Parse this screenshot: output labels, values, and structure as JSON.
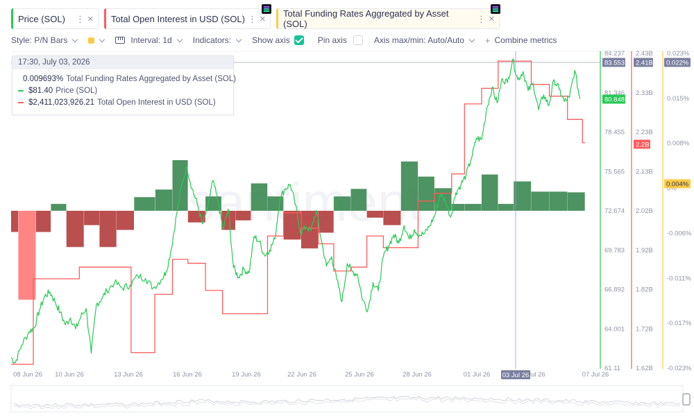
{
  "tabs": [
    {
      "label": "Price (SOL)",
      "color": "#26c953"
    },
    {
      "label": "Total Open Interest in USD (SOL)",
      "color": "#ff5b5b"
    },
    {
      "label": "Total Funding Rates Aggregated by Asset (SOL)",
      "color": "#ffcb47"
    }
  ],
  "toolbar": {
    "style_label": "Style: P/N Bars",
    "interval_label": "Interval: 1d",
    "indicators_label": "Indicators:",
    "show_axis_label": "Show axis",
    "show_axis_checked": true,
    "pin_axis_label": "Pin axis",
    "pin_axis_checked": false,
    "axis_minmax_label": "Axis max/min: Auto/Auto",
    "combine_label": "Combine metrics"
  },
  "tooltip": {
    "header": "17:30, July 03, 2026",
    "rows": [
      {
        "value": "0.009693%",
        "name": "Total Funding Rates Aggregated by Asset (SOL)",
        "color": "#ffcb47"
      },
      {
        "value": "$81.40",
        "name": "Price (SOL)",
        "color": "#26c953"
      },
      {
        "value": "$2,411,023,926.21",
        "name": "Total Open Interest in USD (SOL)",
        "color": "#ff5b5b"
      }
    ]
  },
  "watermark": "santiment",
  "chart_data": {
    "type": "line",
    "x_tick_labels": [
      "08 Jun 26",
      "10 Jun 26",
      "13 Jun 26",
      "16 Jun 26",
      "19 Jun 26",
      "22 Jun 26",
      "25 Jun 26",
      "28 Jun 26",
      "01 Jul 26",
      "03 Jul 26",
      "Jul 26",
      "07 Jul 26"
    ],
    "crosshair_label": "03 Jul 26",
    "axes": {
      "price": {
        "ticks": [
          "84.237",
          "81.346",
          "78.455",
          "75.565",
          "72.674",
          "69.783",
          "66.892",
          "64.001",
          "61.11"
        ],
        "range": [
          61.11,
          84.237
        ],
        "color": "#26c953"
      },
      "open_interest": {
        "ticks": [
          "2.43B",
          "2.33B",
          "2.23B",
          "2.13B",
          "2.02B",
          "1.92B",
          "1.82B",
          "1.72B",
          "1.62B"
        ],
        "range": [
          1.62,
          2.43
        ],
        "unit": "B",
        "color": "#ff5b5b"
      },
      "funding_rate": {
        "ticks": [
          "0.023%",
          "0.015%",
          "0.008%",
          "0%",
          "-0.006%",
          "-0.011%",
          "-0.017%",
          "-0.023%"
        ],
        "range": [
          -0.023,
          0.023
        ],
        "unit": "%",
        "color": "#ffcb47"
      }
    },
    "badges": {
      "price_hover": "83.553",
      "price_last": "80.848",
      "oi_hover": "2.41B",
      "oi_last": "2.2B",
      "fr_hover": "0.022%",
      "fr_last": "0.004%"
    },
    "series": [
      {
        "name": "Total Funding Rates Aggregated by Asset (SOL)",
        "style": "P/N Bars",
        "positive_color": "#3f8a55",
        "negative_color": "#b3403f",
        "bars": [
          [
            0,
            1.4,
            -0.0031
          ],
          [
            1.4,
            4.8,
            -0.013
          ],
          [
            4.8,
            7.7,
            -0.0031
          ],
          [
            7.7,
            10.7,
            0.001
          ],
          [
            10.7,
            14.1,
            -0.0053
          ],
          [
            14.1,
            17.1,
            -0.0021
          ],
          [
            17.1,
            20.4,
            -0.0053
          ],
          [
            20.4,
            23.8,
            -0.0028
          ],
          [
            23.8,
            27.9,
            0.002
          ],
          [
            27.9,
            31.2,
            0.0031
          ],
          [
            31.2,
            34.2,
            0.0074
          ],
          [
            34.2,
            37.6,
            -0.0017
          ],
          [
            37.6,
            40.7,
            0.0021
          ],
          [
            40.7,
            43.4,
            -0.0028
          ],
          [
            43.4,
            46.4,
            -0.0014
          ],
          [
            46.4,
            49.6,
            0.004
          ],
          [
            49.6,
            52.7,
            0.0021
          ],
          [
            52.7,
            56.1,
            -0.0042
          ],
          [
            56.1,
            59.4,
            -0.0055
          ],
          [
            59.4,
            62.4,
            -0.0032
          ],
          [
            62.4,
            65.7,
            0.0021
          ],
          [
            65.7,
            68.8,
            0.0032
          ],
          [
            68.8,
            72.0,
            -0.001
          ],
          [
            72.0,
            75.4,
            -0.0021
          ],
          [
            75.4,
            78.7,
            0.0072
          ],
          [
            78.7,
            81.9,
            0.005
          ],
          [
            81.9,
            85.2,
            0.0033
          ],
          [
            85.2,
            87.7,
            0.001
          ],
          [
            87.7,
            91.0,
            0.001
          ],
          [
            91.0,
            94.2,
            0.0053
          ],
          [
            94.2,
            97.2,
            0.001
          ],
          [
            97.2,
            100.6,
            0.0043
          ],
          [
            100.6,
            104.1,
            0.0028
          ],
          [
            104.1,
            107.6,
            0.0028
          ],
          [
            107.6,
            111.0,
            0.0027
          ]
        ],
        "x_domain_days": [
          0,
          111
        ]
      },
      {
        "name": "Price (SOL)",
        "color": "#26c953",
        "x_domain_days": [
          0,
          111
        ],
        "points": [
          [
            0,
            61.9
          ],
          [
            0.8,
            61.5
          ],
          [
            2,
            62.8
          ],
          [
            3.5,
            63.8
          ],
          [
            4.5,
            64.1
          ],
          [
            5.5,
            65.4
          ],
          [
            6.5,
            66.4
          ],
          [
            7.5,
            66.7
          ],
          [
            8.5,
            66.0
          ],
          [
            9.5,
            65.2
          ],
          [
            10.5,
            64.3
          ],
          [
            11.5,
            64.8
          ],
          [
            12.5,
            64.0
          ],
          [
            13.5,
            64.9
          ],
          [
            14.5,
            65.5
          ],
          [
            15.5,
            62.2
          ],
          [
            16.5,
            65.8
          ],
          [
            17.5,
            66.2
          ],
          [
            18.5,
            66.8
          ],
          [
            20,
            67.4
          ],
          [
            21.5,
            67.0
          ],
          [
            23,
            67.2
          ],
          [
            24.5,
            67.9
          ],
          [
            26,
            67.7
          ],
          [
            27.5,
            67.0
          ],
          [
            29,
            67.6
          ],
          [
            30,
            68.2
          ],
          [
            31,
            69.9
          ],
          [
            32,
            72.4
          ],
          [
            33,
            74.6
          ],
          [
            34,
            75.9
          ],
          [
            35,
            74.3
          ],
          [
            36,
            73.2
          ],
          [
            37,
            71.7
          ],
          [
            38,
            72.8
          ],
          [
            39,
            74.9
          ],
          [
            40,
            73.4
          ],
          [
            41,
            71.3
          ],
          [
            42,
            72.8
          ],
          [
            43,
            68.5
          ],
          [
            44,
            67.8
          ],
          [
            45,
            68.4
          ],
          [
            46,
            68.1
          ],
          [
            47,
            70.8
          ],
          [
            48,
            70.4
          ],
          [
            49,
            69.4
          ],
          [
            50,
            69.8
          ],
          [
            51,
            70.6
          ],
          [
            52,
            73.6
          ],
          [
            53,
            74.3
          ],
          [
            54,
            74.6
          ],
          [
            55,
            73.1
          ],
          [
            56,
            71.0
          ],
          [
            57,
            71.5
          ],
          [
            58,
            71.2
          ],
          [
            59,
            72.7
          ],
          [
            60,
            70.5
          ],
          [
            61,
            68.6
          ],
          [
            62,
            69.3
          ],
          [
            63,
            67.6
          ],
          [
            64,
            66.0
          ],
          [
            65,
            68.8
          ],
          [
            66,
            68.2
          ],
          [
            67,
            68.0
          ],
          [
            68,
            66.1
          ],
          [
            69,
            65.4
          ],
          [
            70,
            67.4
          ],
          [
            71,
            66.8
          ],
          [
            72,
            69.3
          ],
          [
            73,
            70.1
          ],
          [
            74,
            70.9
          ],
          [
            75,
            70.3
          ],
          [
            76,
            71.6
          ],
          [
            77,
            70.6
          ],
          [
            78,
            71.3
          ],
          [
            79,
            70.9
          ],
          [
            80,
            71.0
          ],
          [
            81,
            71.6
          ],
          [
            82,
            72.4
          ],
          [
            83,
            73.9
          ],
          [
            84,
            73.4
          ],
          [
            85,
            72.2
          ],
          [
            86,
            74.0
          ],
          [
            87,
            74.6
          ],
          [
            88,
            75.3
          ],
          [
            89,
            76.5
          ],
          [
            90,
            78.0
          ],
          [
            91,
            77.9
          ],
          [
            92,
            80.2
          ],
          [
            93,
            81.7
          ],
          [
            94,
            80.6
          ],
          [
            95,
            82.4
          ],
          [
            96,
            82.1
          ],
          [
            97,
            83.8
          ],
          [
            98,
            82.3
          ],
          [
            99,
            82.9
          ],
          [
            100,
            81.5
          ],
          [
            101,
            82.0
          ],
          [
            102,
            80.1
          ],
          [
            103,
            81.2
          ],
          [
            104,
            80.4
          ],
          [
            105,
            82.3
          ],
          [
            106,
            81.6
          ],
          [
            107,
            80.7
          ],
          [
            108,
            81.0
          ],
          [
            109,
            83.0
          ],
          [
            110,
            80.9
          ]
        ]
      },
      {
        "name": "Total Open Interest in USD (SOL)",
        "color": "#ff5b5b",
        "x_domain_days": [
          0,
          111
        ],
        "points": [
          [
            0,
            1.63
          ],
          [
            4.3,
            1.63
          ],
          [
            4.3,
            1.85
          ],
          [
            13.2,
            1.85
          ],
          [
            13.2,
            1.88
          ],
          [
            15.0,
            1.88
          ],
          [
            15.0,
            1.88
          ],
          [
            23.2,
            1.88
          ],
          [
            23.2,
            1.66
          ],
          [
            27.8,
            1.66
          ],
          [
            27.8,
            1.81
          ],
          [
            31.2,
            1.81
          ],
          [
            31.2,
            1.9
          ],
          [
            34.2,
            1.9
          ],
          [
            34.2,
            1.89
          ],
          [
            37.6,
            1.89
          ],
          [
            37.6,
            1.82
          ],
          [
            40.9,
            1.82
          ],
          [
            40.9,
            1.76
          ],
          [
            46.8,
            1.76
          ],
          [
            46.8,
            1.76
          ],
          [
            49.6,
            1.76
          ],
          [
            49.6,
            1.96
          ],
          [
            52.7,
            1.96
          ],
          [
            52.7,
            2.02
          ],
          [
            56.1,
            2.02
          ],
          [
            56.1,
            1.98
          ],
          [
            59.4,
            1.98
          ],
          [
            59.4,
            1.94
          ],
          [
            62.4,
            1.94
          ],
          [
            62.4,
            1.87
          ],
          [
            65.7,
            1.87
          ],
          [
            65.7,
            1.88
          ],
          [
            68.8,
            1.88
          ],
          [
            68.8,
            1.96
          ],
          [
            72.0,
            1.96
          ],
          [
            72.0,
            1.93
          ],
          [
            75.4,
            1.93
          ],
          [
            75.4,
            1.93
          ],
          [
            78.7,
            1.93
          ],
          [
            78.7,
            2.05
          ],
          [
            81.9,
            2.05
          ],
          [
            81.9,
            2.07
          ],
          [
            85.2,
            2.07
          ],
          [
            85.2,
            2.12
          ],
          [
            87.7,
            2.12
          ],
          [
            87.7,
            2.3
          ],
          [
            91.0,
            2.3
          ],
          [
            91.0,
            2.34
          ],
          [
            94.2,
            2.34
          ],
          [
            94.2,
            2.41
          ],
          [
            97.2,
            2.41
          ],
          [
            97.2,
            2.41
          ],
          [
            100.6,
            2.41
          ],
          [
            100.6,
            2.35
          ],
          [
            104.1,
            2.35
          ],
          [
            104.1,
            2.32
          ],
          [
            107.6,
            2.32
          ],
          [
            107.6,
            2.26
          ],
          [
            110.5,
            2.26
          ],
          [
            110.5,
            2.2
          ],
          [
            111,
            2.2
          ]
        ]
      }
    ],
    "grid": false,
    "legend": "none"
  }
}
